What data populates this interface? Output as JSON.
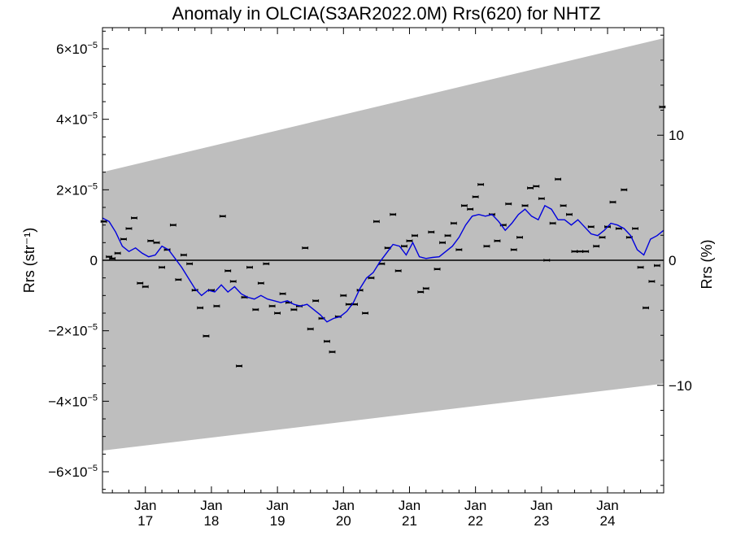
{
  "chart_data": {
    "type": "scatter",
    "title": "Anomaly in OLCIA(S3AR2022.0M) Rrs(620) for NHTZ",
    "ylabel_left": "Rrs (str⁻¹)",
    "ylabel_right": "Rrs (%)",
    "x_range": [
      2016.35,
      2024.85
    ],
    "ylim": [
      -6.6e-05,
      6.6e-05
    ],
    "y_right_range": [
      -18.6,
      18.6
    ],
    "y_ticks": [
      {
        "value": 6e-05,
        "mantissa": "6",
        "exp": "−5",
        "neg": false
      },
      {
        "value": 4e-05,
        "mantissa": "4",
        "exp": "−5",
        "neg": false
      },
      {
        "value": 2e-05,
        "mantissa": "2",
        "exp": "−5",
        "neg": false
      },
      {
        "value": 0,
        "mantissa": "0",
        "exp": "",
        "neg": false
      },
      {
        "value": -2e-05,
        "mantissa": "2",
        "exp": "−5",
        "neg": true
      },
      {
        "value": -4e-05,
        "mantissa": "4",
        "exp": "−5",
        "neg": true
      },
      {
        "value": -6e-05,
        "mantissa": "6",
        "exp": "−5",
        "neg": true
      }
    ],
    "y_right_ticks": [
      {
        "value": 10,
        "label": "10"
      },
      {
        "value": 0,
        "label": "0"
      },
      {
        "value": -10,
        "label": "−10"
      }
    ],
    "x_ticks": [
      {
        "value": 2017,
        "month": "Jan",
        "year": "17"
      },
      {
        "value": 2018,
        "month": "Jan",
        "year": "18"
      },
      {
        "value": 2019,
        "month": "Jan",
        "year": "19"
      },
      {
        "value": 2020,
        "month": "Jan",
        "year": "20"
      },
      {
        "value": 2021,
        "month": "Jan",
        "year": "21"
      },
      {
        "value": 2022,
        "month": "Jan",
        "year": "22"
      },
      {
        "value": 2023,
        "month": "Jan",
        "year": "23"
      },
      {
        "value": 2024,
        "month": "Jan",
        "year": "24"
      }
    ],
    "band": {
      "x": [
        2016.35,
        2024.85
      ],
      "upper": [
        2.5e-05,
        6.3e-05
      ],
      "lower": [
        -5.4e-05,
        -3.5e-05
      ]
    },
    "zero_line": 0,
    "points": [
      {
        "x": 2016.37,
        "y": 1.1e-05
      },
      {
        "x": 2016.45,
        "y": 1e-06
      },
      {
        "x": 2016.5,
        "y": 5e-07
      },
      {
        "x": 2016.58,
        "y": 2e-06
      },
      {
        "x": 2016.67,
        "y": 6e-06
      },
      {
        "x": 2016.75,
        "y": 9e-06
      },
      {
        "x": 2016.83,
        "y": 1.2e-05
      },
      {
        "x": 2016.92,
        "y": -6.5e-06
      },
      {
        "x": 2017.0,
        "y": -7.5e-06
      },
      {
        "x": 2017.08,
        "y": 5.5e-06
      },
      {
        "x": 2017.17,
        "y": 5e-06
      },
      {
        "x": 2017.25,
        "y": -2e-06
      },
      {
        "x": 2017.33,
        "y": 3e-06
      },
      {
        "x": 2017.42,
        "y": 1e-05
      },
      {
        "x": 2017.5,
        "y": -5.5e-06
      },
      {
        "x": 2017.58,
        "y": 1.5e-06
      },
      {
        "x": 2017.67,
        "y": -1e-06
      },
      {
        "x": 2017.75,
        "y": -8.5e-06
      },
      {
        "x": 2017.83,
        "y": -1.35e-05
      },
      {
        "x": 2017.92,
        "y": -2.15e-05
      },
      {
        "x": 2018.0,
        "y": -8.5e-06
      },
      {
        "x": 2018.08,
        "y": -1.3e-05
      },
      {
        "x": 2018.17,
        "y": 1.25e-05
      },
      {
        "x": 2018.25,
        "y": -3e-06
      },
      {
        "x": 2018.33,
        "y": -6e-06
      },
      {
        "x": 2018.42,
        "y": -3e-05
      },
      {
        "x": 2018.5,
        "y": -1.05e-05
      },
      {
        "x": 2018.58,
        "y": -2e-06
      },
      {
        "x": 2018.67,
        "y": -1.4e-05
      },
      {
        "x": 2018.75,
        "y": -6.5e-06
      },
      {
        "x": 2018.83,
        "y": -1e-06
      },
      {
        "x": 2018.92,
        "y": -1.3e-05
      },
      {
        "x": 2019.0,
        "y": -1.5e-05
      },
      {
        "x": 2019.08,
        "y": -9.5e-06
      },
      {
        "x": 2019.17,
        "y": -1.2e-05
      },
      {
        "x": 2019.25,
        "y": -1.4e-05
      },
      {
        "x": 2019.33,
        "y": -1.3e-05
      },
      {
        "x": 2019.42,
        "y": 3.5e-06
      },
      {
        "x": 2019.5,
        "y": -1.95e-05
      },
      {
        "x": 2019.58,
        "y": -1.15e-05
      },
      {
        "x": 2019.67,
        "y": -1.65e-05
      },
      {
        "x": 2019.75,
        "y": -2.3e-05
      },
      {
        "x": 2019.83,
        "y": -2.6e-05
      },
      {
        "x": 2019.92,
        "y": -1.6e-05
      },
      {
        "x": 2020.0,
        "y": -1e-05
      },
      {
        "x": 2020.08,
        "y": -1.25e-05
      },
      {
        "x": 2020.17,
        "y": -1.25e-05
      },
      {
        "x": 2020.25,
        "y": -8.5e-06
      },
      {
        "x": 2020.33,
        "y": -1.5e-05
      },
      {
        "x": 2020.42,
        "y": -5e-06
      },
      {
        "x": 2020.5,
        "y": 1.1e-05
      },
      {
        "x": 2020.58,
        "y": -1e-06
      },
      {
        "x": 2020.67,
        "y": 3.5e-06
      },
      {
        "x": 2020.75,
        "y": 1.3e-05
      },
      {
        "x": 2020.83,
        "y": -3e-06
      },
      {
        "x": 2020.92,
        "y": 4e-06
      },
      {
        "x": 2021.0,
        "y": 5.5e-06
      },
      {
        "x": 2021.08,
        "y": 7e-06
      },
      {
        "x": 2021.17,
        "y": -9e-06
      },
      {
        "x": 2021.25,
        "y": -8e-06
      },
      {
        "x": 2021.33,
        "y": 8e-06
      },
      {
        "x": 2021.42,
        "y": -2.5e-06
      },
      {
        "x": 2021.5,
        "y": 5e-06
      },
      {
        "x": 2021.58,
        "y": 7e-06
      },
      {
        "x": 2021.67,
        "y": 1.05e-05
      },
      {
        "x": 2021.75,
        "y": 3e-06
      },
      {
        "x": 2021.83,
        "y": 1.55e-05
      },
      {
        "x": 2021.92,
        "y": 1.45e-05
      },
      {
        "x": 2022.0,
        "y": 1.8e-05
      },
      {
        "x": 2022.08,
        "y": 2.15e-05
      },
      {
        "x": 2022.17,
        "y": 4e-06
      },
      {
        "x": 2022.25,
        "y": 1.3e-05
      },
      {
        "x": 2022.33,
        "y": 5.5e-06
      },
      {
        "x": 2022.42,
        "y": 1e-05
      },
      {
        "x": 2022.5,
        "y": 1.6e-05
      },
      {
        "x": 2022.58,
        "y": 3e-06
      },
      {
        "x": 2022.67,
        "y": 6.5e-06
      },
      {
        "x": 2022.75,
        "y": 1.55e-05
      },
      {
        "x": 2022.83,
        "y": 2.05e-05
      },
      {
        "x": 2022.92,
        "y": 2.1e-05
      },
      {
        "x": 2023.0,
        "y": 1.75e-05
      },
      {
        "x": 2023.08,
        "y": 0.0
      },
      {
        "x": 2023.17,
        "y": 1.05e-05
      },
      {
        "x": 2023.25,
        "y": 2.3e-05
      },
      {
        "x": 2023.33,
        "y": 1.55e-05
      },
      {
        "x": 2023.42,
        "y": 1.3e-05
      },
      {
        "x": 2023.5,
        "y": 2.5e-06
      },
      {
        "x": 2023.58,
        "y": 2.5e-06
      },
      {
        "x": 2023.67,
        "y": 2.5e-06
      },
      {
        "x": 2023.75,
        "y": 9.5e-06
      },
      {
        "x": 2023.83,
        "y": 4e-06
      },
      {
        "x": 2023.92,
        "y": 6.5e-06
      },
      {
        "x": 2024.0,
        "y": 9.5e-06
      },
      {
        "x": 2024.08,
        "y": 1.65e-05
      },
      {
        "x": 2024.17,
        "y": 9e-06
      },
      {
        "x": 2024.25,
        "y": 2e-05
      },
      {
        "x": 2024.33,
        "y": 6.5e-06
      },
      {
        "x": 2024.42,
        "y": 9e-06
      },
      {
        "x": 2024.5,
        "y": -2e-06
      },
      {
        "x": 2024.58,
        "y": -1.35e-05
      },
      {
        "x": 2024.67,
        "y": -6e-06
      },
      {
        "x": 2024.75,
        "y": -1.5e-06
      },
      {
        "x": 2024.83,
        "y": 4.35e-05
      }
    ],
    "series": [
      {
        "color": "#0000dd",
        "x": [
          2016.35,
          2016.45,
          2016.55,
          2016.65,
          2016.75,
          2016.85,
          2016.95,
          2017.05,
          2017.15,
          2017.25,
          2017.35,
          2017.45,
          2017.55,
          2017.65,
          2017.75,
          2017.85,
          2017.95,
          2018.05,
          2018.15,
          2018.25,
          2018.35,
          2018.45,
          2018.55,
          2018.65,
          2018.75,
          2018.85,
          2018.95,
          2019.05,
          2019.15,
          2019.25,
          2019.35,
          2019.45,
          2019.55,
          2019.65,
          2019.75,
          2019.85,
          2019.95,
          2020.05,
          2020.15,
          2020.25,
          2020.35,
          2020.45,
          2020.55,
          2020.65,
          2020.75,
          2020.85,
          2020.95,
          2021.05,
          2021.15,
          2021.25,
          2021.35,
          2021.45,
          2021.55,
          2021.65,
          2021.75,
          2021.85,
          2021.95,
          2022.05,
          2022.15,
          2022.25,
          2022.35,
          2022.45,
          2022.55,
          2022.65,
          2022.75,
          2022.85,
          2022.95,
          2023.05,
          2023.15,
          2023.25,
          2023.35,
          2023.45,
          2023.55,
          2023.65,
          2023.75,
          2023.85,
          2023.95,
          2024.05,
          2024.15,
          2024.25,
          2024.35,
          2024.45,
          2024.55,
          2024.65,
          2024.75,
          2024.85
        ],
        "values": [
          1.2e-05,
          1.1e-05,
          8e-06,
          4e-06,
          2.5e-06,
          3.5e-06,
          2e-06,
          1e-06,
          1.5e-06,
          4e-06,
          3e-06,
          5e-07,
          -2e-06,
          -5e-06,
          -8e-06,
          -1e-05,
          -8.5e-06,
          -9e-06,
          -7e-06,
          -9e-06,
          -7.5e-06,
          -9.5e-06,
          -1.05e-05,
          -1.1e-05,
          -1e-05,
          -1.1e-05,
          -1.15e-05,
          -1.2e-05,
          -1.15e-05,
          -1.25e-05,
          -1.3e-05,
          -1.25e-05,
          -1.4e-05,
          -1.55e-05,
          -1.75e-05,
          -1.65e-05,
          -1.6e-05,
          -1.45e-05,
          -1.2e-05,
          -8e-06,
          -5e-06,
          -3.5e-06,
          -5e-07,
          2e-06,
          4.5e-06,
          4e-06,
          1.5e-06,
          5e-06,
          1e-06,
          5e-07,
          8e-07,
          1e-06,
          2.5e-06,
          4e-06,
          6.5e-06,
          1e-05,
          1.25e-05,
          1.3e-05,
          1.25e-05,
          1.3e-05,
          1.1e-05,
          8.5e-06,
          1.05e-05,
          1.3e-05,
          1.45e-05,
          1.25e-05,
          1.15e-05,
          1.55e-05,
          1.45e-05,
          1.15e-05,
          1.15e-05,
          1e-05,
          1.15e-05,
          9.5e-06,
          7.5e-06,
          7e-06,
          8.5e-06,
          1.05e-05,
          1e-05,
          9e-06,
          7e-06,
          3e-06,
          1.5e-06,
          6e-06,
          7e-06,
          8.5e-06
        ]
      }
    ]
  }
}
